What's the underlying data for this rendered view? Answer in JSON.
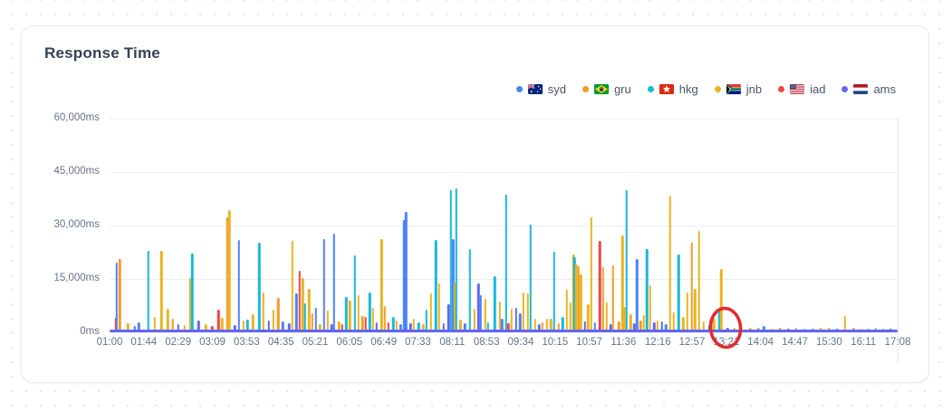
{
  "card": {
    "title": "Response Time"
  },
  "chart_data": {
    "type": "bar",
    "title": "Response Time",
    "ylim": [
      0,
      60000
    ],
    "grid": true,
    "legend_position": "top-right",
    "yticks": [
      {
        "v": 60000,
        "label": "60,000ms"
      },
      {
        "v": 45000,
        "label": "45,000ms"
      },
      {
        "v": 30000,
        "label": "30,000ms"
      },
      {
        "v": 15000,
        "label": "15,000ms"
      },
      {
        "v": 0,
        "label": "0ms"
      }
    ],
    "xticks": [
      "01:00",
      "01:44",
      "02:29",
      "03:09",
      "03:53",
      "04:35",
      "05:21",
      "06:05",
      "06:49",
      "07:33",
      "08:11",
      "08:53",
      "09:34",
      "10:15",
      "10:57",
      "11:36",
      "12:16",
      "12:57",
      "13:21",
      "14:04",
      "14:47",
      "15:30",
      "16:11",
      "17:08"
    ],
    "series": [
      {
        "name": "syd",
        "flag": "au",
        "color": "#4c82f6"
      },
      {
        "name": "gru",
        "flag": "br",
        "color": "#f59a23"
      },
      {
        "name": "hkg",
        "flag": "hk",
        "color": "#17b8d8"
      },
      {
        "name": "jnb",
        "flag": "za",
        "color": "#e9b320"
      },
      {
        "name": "iad",
        "flag": "us",
        "color": "#ef4444"
      },
      {
        "name": "ams",
        "flag": "nl",
        "color": "#6366f1"
      }
    ],
    "baseline": {
      "series": "ams",
      "approx_ms": 800
    },
    "spikes_format": [
      "pos_pct_of_x_axis",
      "series_index",
      "response_ms"
    ],
    "spikes": [
      [
        0.8,
        4,
        4000
      ],
      [
        0.9,
        0,
        19600
      ],
      [
        1.3,
        1,
        20500
      ],
      [
        2.3,
        3,
        2600
      ],
      [
        3.2,
        5,
        1800
      ],
      [
        3.7,
        0,
        2800
      ],
      [
        4.9,
        2,
        22900
      ],
      [
        5.7,
        3,
        4200
      ],
      [
        6.6,
        3,
        22900
      ],
      [
        7.4,
        3,
        6600
      ],
      [
        8.0,
        1,
        3800
      ],
      [
        8.7,
        5,
        2200
      ],
      [
        9.5,
        3,
        2000
      ],
      [
        10.2,
        3,
        15200
      ],
      [
        10.5,
        2,
        22000
      ],
      [
        11.3,
        5,
        3200
      ],
      [
        12.2,
        3,
        2400
      ],
      [
        13.0,
        4,
        1800
      ],
      [
        13.8,
        4,
        6300
      ],
      [
        14.3,
        3,
        4100
      ],
      [
        14.9,
        1,
        32200
      ],
      [
        15.2,
        3,
        34300
      ],
      [
        15.9,
        5,
        2000
      ],
      [
        16.4,
        0,
        25900
      ],
      [
        17.0,
        3,
        3200
      ],
      [
        17.5,
        2,
        3600
      ],
      [
        18.2,
        3,
        5200
      ],
      [
        19.0,
        2,
        25200
      ],
      [
        19.5,
        3,
        11300
      ],
      [
        20.2,
        5,
        3400
      ],
      [
        20.8,
        3,
        6400
      ],
      [
        21.4,
        1,
        9700
      ],
      [
        22.0,
        0,
        3000
      ],
      [
        22.8,
        5,
        2600
      ],
      [
        23.2,
        3,
        25800
      ],
      [
        23.7,
        0,
        10900
      ],
      [
        24.1,
        4,
        17400
      ],
      [
        24.5,
        3,
        15300
      ],
      [
        24.8,
        2,
        8100
      ],
      [
        25.3,
        3,
        12100
      ],
      [
        25.7,
        1,
        5300
      ],
      [
        26.2,
        0,
        6900
      ],
      [
        26.7,
        3,
        2200
      ],
      [
        27.2,
        0,
        26100
      ],
      [
        27.7,
        3,
        6100
      ],
      [
        28.2,
        5,
        2400
      ],
      [
        28.5,
        0,
        27600
      ],
      [
        29.1,
        3,
        3000
      ],
      [
        29.5,
        4,
        2200
      ],
      [
        30.0,
        2,
        9900
      ],
      [
        30.5,
        3,
        8800
      ],
      [
        31.1,
        2,
        21600
      ],
      [
        31.6,
        3,
        10400
      ],
      [
        32.1,
        1,
        4600
      ],
      [
        32.5,
        4,
        4400
      ],
      [
        33.0,
        2,
        11200
      ],
      [
        33.4,
        3,
        6900
      ],
      [
        33.9,
        5,
        2800
      ],
      [
        34.5,
        3,
        26100
      ],
      [
        34.9,
        1,
        7300
      ],
      [
        35.4,
        4,
        2900
      ],
      [
        36.0,
        2,
        4300
      ],
      [
        36.4,
        3,
        3200
      ],
      [
        36.9,
        0,
        2400
      ],
      [
        37.4,
        0,
        31600
      ],
      [
        37.6,
        0,
        33800
      ],
      [
        38.2,
        5,
        2500
      ],
      [
        38.6,
        3,
        3700
      ],
      [
        39.2,
        2,
        2800
      ],
      [
        39.8,
        3,
        2400
      ],
      [
        40.2,
        2,
        6300
      ],
      [
        40.8,
        3,
        10900
      ],
      [
        41.4,
        2,
        25900
      ],
      [
        41.8,
        3,
        13800
      ],
      [
        42.4,
        5,
        2600
      ],
      [
        43.0,
        5,
        7900
      ],
      [
        43.3,
        2,
        39900
      ],
      [
        43.6,
        0,
        26300
      ],
      [
        43.8,
        3,
        14000
      ],
      [
        44.0,
        2,
        40400
      ],
      [
        44.5,
        3,
        3600
      ],
      [
        45.1,
        0,
        2600
      ],
      [
        45.7,
        2,
        23500
      ],
      [
        46.3,
        3,
        6500
      ],
      [
        46.8,
        5,
        13800
      ],
      [
        47.1,
        0,
        10500
      ],
      [
        47.7,
        3,
        9400
      ],
      [
        48.0,
        2,
        2700
      ],
      [
        48.9,
        2,
        15800
      ],
      [
        49.5,
        3,
        8700
      ],
      [
        49.8,
        0,
        3900
      ],
      [
        50.3,
        2,
        38700
      ],
      [
        50.6,
        4,
        2500
      ],
      [
        51.0,
        3,
        6500
      ],
      [
        51.6,
        5,
        6900
      ],
      [
        52.1,
        0,
        5400
      ],
      [
        52.5,
        3,
        11100
      ],
      [
        53.1,
        3,
        11000
      ],
      [
        53.4,
        2,
        30300
      ],
      [
        54.0,
        3,
        3900
      ],
      [
        54.5,
        0,
        2400
      ],
      [
        54.9,
        1,
        2800
      ],
      [
        55.5,
        3,
        3900
      ],
      [
        56.0,
        3,
        3800
      ],
      [
        56.4,
        2,
        22600
      ],
      [
        57.0,
        1,
        2600
      ],
      [
        57.5,
        2,
        4300
      ],
      [
        58.0,
        3,
        12000
      ],
      [
        58.5,
        3,
        8300
      ],
      [
        58.9,
        3,
        21900
      ],
      [
        59.0,
        2,
        21000
      ],
      [
        59.2,
        3,
        19100
      ],
      [
        59.5,
        1,
        18600
      ],
      [
        59.8,
        3,
        16300
      ],
      [
        60.3,
        5,
        3000
      ],
      [
        60.7,
        3,
        8000
      ],
      [
        61.1,
        3,
        32400
      ],
      [
        61.6,
        0,
        2800
      ],
      [
        62.2,
        4,
        25700
      ],
      [
        62.6,
        1,
        18400
      ],
      [
        63.1,
        3,
        8300
      ],
      [
        63.6,
        5,
        2400
      ],
      [
        63.9,
        1,
        18800
      ],
      [
        64.6,
        1,
        3000
      ],
      [
        65.1,
        3,
        27300
      ],
      [
        65.3,
        3,
        7100
      ],
      [
        65.6,
        2,
        39800
      ],
      [
        66.1,
        3,
        5100
      ],
      [
        66.6,
        5,
        2600
      ],
      [
        66.9,
        0,
        20500
      ],
      [
        67.4,
        1,
        3400
      ],
      [
        67.8,
        3,
        4800
      ],
      [
        68.2,
        2,
        23400
      ],
      [
        68.6,
        3,
        13200
      ],
      [
        69.1,
        5,
        2800
      ],
      [
        69.5,
        3,
        3200
      ],
      [
        70.1,
        5,
        3100
      ],
      [
        70.6,
        0,
        2300
      ],
      [
        71.1,
        3,
        38500
      ],
      [
        71.6,
        3,
        5600
      ],
      [
        72.2,
        2,
        21900
      ],
      [
        72.8,
        3,
        4400
      ],
      [
        73.3,
        3,
        11100
      ],
      [
        73.9,
        1,
        25100
      ],
      [
        74.3,
        3,
        12200
      ],
      [
        74.8,
        3,
        28400
      ],
      [
        75.4,
        3,
        3100
      ],
      [
        76.1,
        0,
        2100
      ],
      [
        76.7,
        3,
        3900
      ],
      [
        77.4,
        2,
        6400
      ],
      [
        77.6,
        3,
        17900
      ],
      [
        78.4,
        5,
        1200
      ],
      [
        79.3,
        1,
        1400
      ],
      [
        80.2,
        0,
        1100
      ],
      [
        81.3,
        3,
        1300
      ],
      [
        82.3,
        1,
        1200
      ],
      [
        83.0,
        0,
        1800
      ],
      [
        84.1,
        3,
        1100
      ],
      [
        85.1,
        1,
        1300
      ],
      [
        86.1,
        5,
        1000
      ],
      [
        87.1,
        1,
        1200
      ],
      [
        88.2,
        3,
        1100
      ],
      [
        89.2,
        0,
        1000
      ],
      [
        90.2,
        1,
        1300
      ],
      [
        91.3,
        3,
        1200
      ],
      [
        92.3,
        5,
        1000
      ],
      [
        93.3,
        3,
        4600
      ],
      [
        94.4,
        1,
        1200
      ],
      [
        95.4,
        3,
        1100
      ],
      [
        96.3,
        0,
        1000
      ],
      [
        97.2,
        1,
        1200
      ],
      [
        98.2,
        3,
        1100
      ],
      [
        99.1,
        5,
        1000
      ]
    ],
    "annotation": {
      "shape": "ellipse",
      "circled_xtick": "13:21",
      "pos_pct": 78.2,
      "color": "#e02d30"
    }
  }
}
